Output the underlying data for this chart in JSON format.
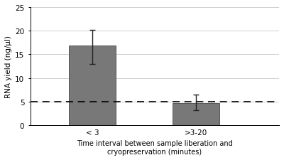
{
  "categories": [
    "< 3",
    ">3-20"
  ],
  "values": [
    16.8,
    4.7
  ],
  "yerr_upper": [
    3.3,
    1.8
  ],
  "yerr_lower": [
    3.8,
    1.6
  ],
  "bar_color": "#787878",
  "bar_edgecolor": "#555555",
  "dashed_line_y": 5.0,
  "dashed_line_color": "#000000",
  "ylabel": "RNA yield (ng/µl)",
  "xlabel": "Time interval between sample liberation and\ncryopreservation (minutes)",
  "ylim": [
    0,
    25
  ],
  "yticks": [
    0,
    5,
    10,
    15,
    20,
    25
  ],
  "background_color": "#ffffff",
  "grid_color": "#c8c8c8",
  "xlabel_fontsize": 7.0,
  "ylabel_fontsize": 7.5,
  "tick_fontsize": 7.5,
  "x_positions": [
    1,
    2
  ],
  "xlim": [
    0.4,
    2.8
  ],
  "bar_width": 0.45
}
